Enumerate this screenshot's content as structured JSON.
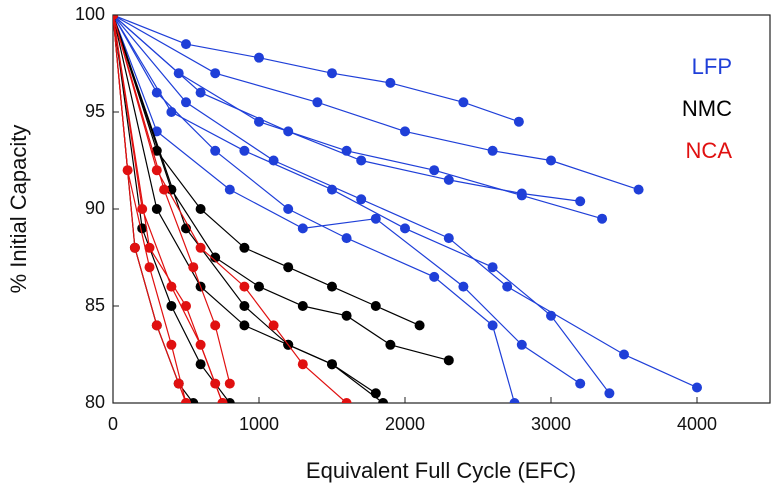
{
  "chart_data": {
    "type": "line",
    "x_label": "Equivalent Full Cycle (EFC)",
    "y_label": "% Initial Capacity",
    "xlim": [
      0,
      4500
    ],
    "ylim": [
      80,
      100
    ],
    "xticks": [
      0,
      1000,
      2000,
      3000,
      4000
    ],
    "yticks": [
      80,
      85,
      90,
      95,
      100
    ],
    "legend": "top-right",
    "series": [
      {
        "name": "LFP",
        "color": "#1f3fd8",
        "lines": [
          {
            "x": [
              0,
              500,
              1000,
              1500,
              1900,
              2400,
              2780
            ],
            "values": [
              100,
              98.5,
              97.8,
              97,
              96.5,
              95.5,
              94.5
            ]
          },
          {
            "x": [
              0,
              700,
              1400,
              2000,
              2600,
              3000,
              3600
            ],
            "values": [
              100,
              97,
              95.5,
              94,
              93,
              92.5,
              91
            ]
          },
          {
            "x": [
              0,
              600,
              1200,
              1700,
              2300,
              2800,
              3200
            ],
            "values": [
              100,
              96,
              94,
              92.5,
              91.5,
              90.8,
              90.4
            ]
          },
          {
            "x": [
              0,
              400,
              900,
              1500,
              2000,
              2600,
              3000,
              3400
            ],
            "values": [
              100,
              95,
              93,
              91,
              89,
              87,
              84.5,
              80.5
            ]
          },
          {
            "x": [
              0,
              300,
              800,
              1300,
              1800,
              2400,
              2800,
              3200
            ],
            "values": [
              100,
              94,
              91,
              89,
              89.5,
              86,
              83,
              81
            ]
          },
          {
            "x": [
              0,
              500,
              1100,
              1700,
              2300,
              2700,
              3500,
              4000
            ],
            "values": [
              100,
              95.5,
              92.5,
              90.5,
              88.5,
              86,
              82.5,
              80.8
            ]
          },
          {
            "x": [
              0,
              450,
              1000,
              1600,
              2200,
              2800,
              3350
            ],
            "values": [
              100,
              97,
              94.5,
              93,
              92,
              90.7,
              89.5
            ]
          },
          {
            "x": [
              0,
              300,
              700,
              1200,
              1600,
              2200,
              2600,
              2750
            ],
            "values": [
              100,
              96,
              93,
              90,
              88.5,
              86.5,
              84,
              80
            ]
          }
        ]
      },
      {
        "name": "NMC",
        "color": "#000000",
        "lines": [
          {
            "x": [
              0,
              300,
              600,
              900,
              1200,
              1500,
              1800,
              2100
            ],
            "values": [
              100,
              93,
              90,
              88,
              87,
              86,
              85,
              84
            ]
          },
          {
            "x": [
              0,
              400,
              700,
              1000,
              1300,
              1600,
              1900,
              2300
            ],
            "values": [
              100,
              91,
              87.5,
              86,
              85,
              84.5,
              83,
              82.2
            ]
          },
          {
            "x": [
              0,
              300,
              600,
              900,
              1200,
              1500,
              1800
            ],
            "values": [
              100,
              90,
              86,
              84,
              83,
              82,
              80.5
            ]
          },
          {
            "x": [
              0,
              200,
              400,
              600,
              800
            ],
            "values": [
              100,
              89,
              85,
              82,
              80
            ]
          },
          {
            "x": [
              0,
              150,
              300,
              450,
              550
            ],
            "values": [
              100,
              88,
              84,
              81,
              80
            ]
          },
          {
            "x": [
              0,
              500,
              900,
              1200,
              1500,
              1850
            ],
            "values": [
              100,
              89,
              85,
              83,
              82,
              80
            ]
          }
        ]
      },
      {
        "name": "NCA",
        "color": "#e01010",
        "lines": [
          {
            "x": [
              0,
              200,
              400,
              600,
              750
            ],
            "values": [
              100,
              90,
              86,
              83,
              80
            ]
          },
          {
            "x": [
              0,
              150,
              300,
              450,
              500
            ],
            "values": [
              100,
              88,
              84,
              81,
              80
            ]
          },
          {
            "x": [
              0,
              300,
              600,
              900,
              1100,
              1300,
              1600
            ],
            "values": [
              100,
              92,
              88,
              86,
              84,
              82,
              80
            ]
          },
          {
            "x": [
              0,
              100,
              250,
              400,
              500
            ],
            "values": [
              100,
              92,
              87,
              83,
              80
            ]
          },
          {
            "x": [
              0,
              250,
              500,
              700,
              750
            ],
            "values": [
              100,
              88,
              85,
              81,
              80
            ]
          },
          {
            "x": [
              0,
              350,
              550,
              700,
              800
            ],
            "values": [
              100,
              91,
              87,
              84,
              81
            ]
          }
        ]
      }
    ]
  }
}
